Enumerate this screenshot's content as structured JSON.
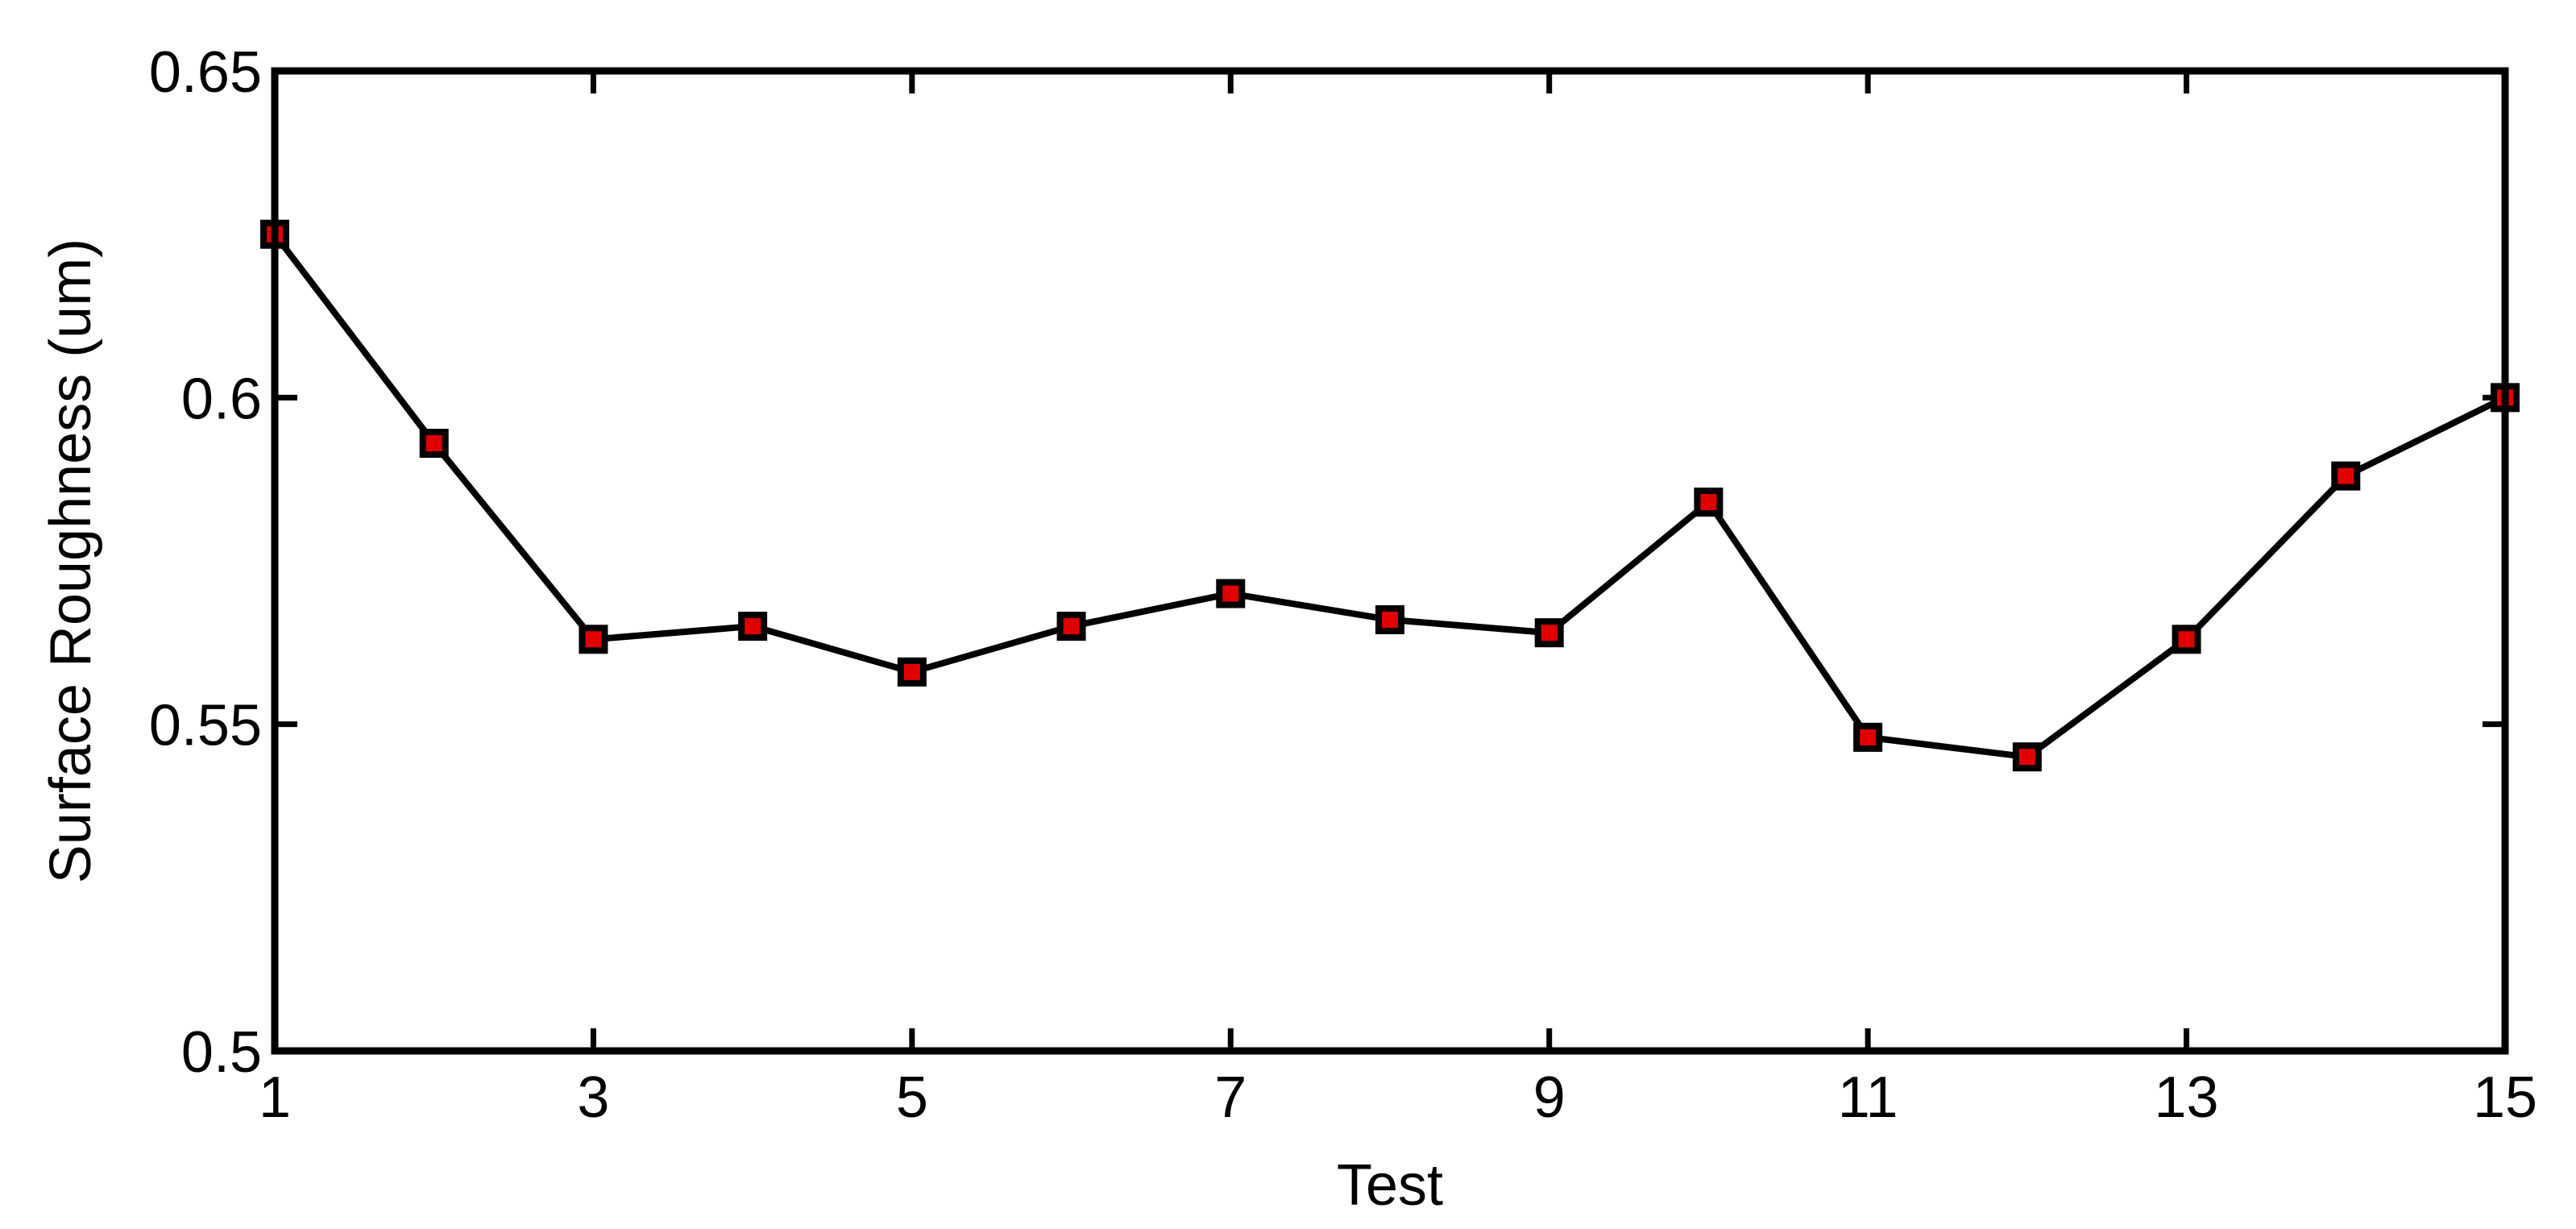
{
  "chart_data": {
    "type": "line",
    "title": "",
    "xlabel": "Test",
    "ylabel": "Surface Roughness (um)",
    "xlim": [
      1,
      15
    ],
    "ylim": [
      0.5,
      0.65
    ],
    "x_ticks": [
      1,
      3,
      5,
      7,
      9,
      11,
      13,
      15
    ],
    "y_ticks": [
      0.5,
      0.55,
      0.6,
      0.65
    ],
    "y_tick_labels": [
      "0.5",
      "0.55",
      "0.6",
      "0.65"
    ],
    "grid": false,
    "legend": "none",
    "series": [
      {
        "x": [
          1,
          2,
          3,
          4,
          5,
          6,
          7,
          8,
          9,
          10,
          11,
          12,
          13,
          14,
          15
        ],
        "values": [
          0.625,
          0.593,
          0.563,
          0.565,
          0.558,
          0.565,
          0.57,
          0.566,
          0.564,
          0.584,
          0.548,
          0.545,
          0.563,
          0.588,
          0.6
        ],
        "line_color": "#000000",
        "marker": "square",
        "marker_fill": "#e00000",
        "marker_edge": "#000000"
      }
    ]
  }
}
